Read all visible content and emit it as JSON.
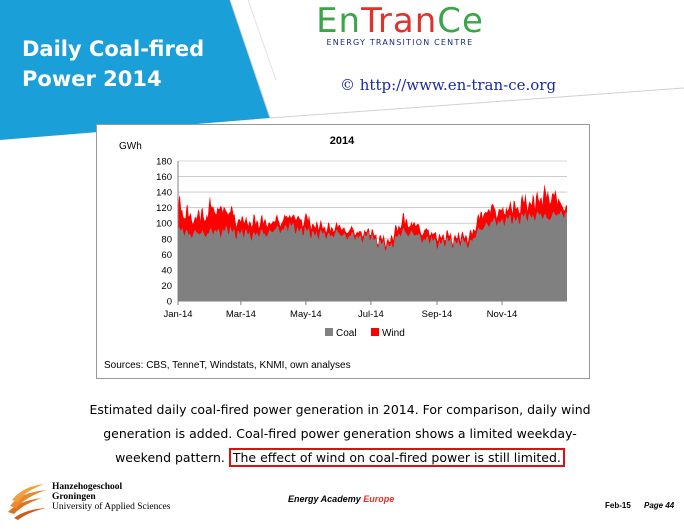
{
  "slide": {
    "title_line1": "Daily Coal-fired",
    "title_line2": "Power 2014",
    "accent_color": "#1b9fd8"
  },
  "logo": {
    "word_en": "En",
    "word_tran": "Tran",
    "word_ce": "Ce",
    "subtitle": "ENERGY TRANSITION CENTRE",
    "green": "#3aa64a",
    "red": "#e0312b"
  },
  "copyright": "© http://www.en-tran-ce.org",
  "chart_data": {
    "type": "area",
    "title": "2014",
    "ylabel": "GWh",
    "ylim": [
      0,
      180
    ],
    "yticks": [
      0,
      20,
      40,
      60,
      80,
      100,
      120,
      140,
      160,
      180
    ],
    "xlim": [
      0,
      365
    ],
    "xtick_labels": [
      "Jan-14",
      "Mar-14",
      "May-14",
      "Jul-14",
      "Sep-14",
      "Nov-14"
    ],
    "xtick_days": [
      0,
      59,
      120,
      181,
      243,
      304
    ],
    "grid": true,
    "legend": [
      "Coal",
      "Wind"
    ],
    "legend_position": "bottom",
    "colors": {
      "Coal": "#808080",
      "Wind": "#ff0000"
    },
    "series": [
      {
        "name": "Coal",
        "day": [
          0,
          15,
          31,
          45,
          59,
          75,
          90,
          105,
          120,
          135,
          151,
          166,
          181,
          196,
          212,
          227,
          243,
          258,
          273,
          288,
          304,
          319,
          334,
          349,
          364
        ],
        "values": [
          92,
          88,
          90,
          93,
          89,
          87,
          92,
          98,
          91,
          87,
          88,
          84,
          85,
          70,
          92,
          84,
          77,
          78,
          76,
          100,
          105,
          108,
          112,
          110,
          116
        ]
      },
      {
        "name": "Wind",
        "day": [
          0,
          15,
          31,
          45,
          59,
          75,
          90,
          105,
          120,
          135,
          151,
          166,
          181,
          196,
          212,
          227,
          243,
          258,
          273,
          288,
          304,
          319,
          334,
          349,
          364
        ],
        "values": [
          30,
          18,
          28,
          25,
          14,
          16,
          10,
          12,
          14,
          9,
          8,
          6,
          5,
          6,
          14,
          10,
          8,
          6,
          8,
          18,
          12,
          16,
          18,
          28,
          6
        ]
      }
    ],
    "source_note": "Sources: CBS, TenneT, Windstats, KNMI, own analyses"
  },
  "caption": {
    "line1": "Estimated daily coal-fired power generation in 2014. For comparison, daily wind",
    "line2": "generation is added. Coal-fired power generation shows a limited weekday-",
    "line3_prefix": "weekend pattern. ",
    "line3_highlight": "The effect of wind on coal-fired power is still limited."
  },
  "footer": {
    "school_line1": "Hanzehogeschool",
    "school_line2": "Groningen",
    "school_line3": "University of Applied Sciences",
    "academy_word1": "Energy Academy",
    "academy_word2": "Europe",
    "date": "Feb-15",
    "page": "Page 44"
  }
}
